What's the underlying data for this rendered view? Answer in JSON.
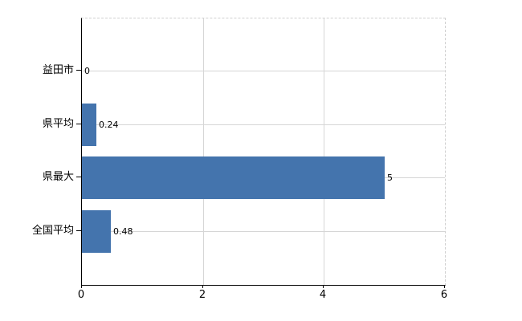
{
  "chart_data": {
    "type": "bar",
    "orientation": "horizontal",
    "title": "",
    "categories": [
      "益田市",
      "県平均",
      "県最大",
      "全国平均"
    ],
    "values": [
      0,
      0.24,
      5,
      0.48
    ],
    "value_labels": [
      "0",
      "0.24",
      "5",
      "0.48"
    ],
    "xlabel": "",
    "ylabel": "",
    "xlim": [
      0,
      6
    ],
    "x_ticks": [
      0,
      2,
      4,
      6
    ],
    "x_tick_labels": [
      "0",
      "2",
      "4",
      "6"
    ],
    "grid": "on",
    "legend": "none",
    "colors": {
      "bar_fill": "#4474ad",
      "grid_line": "#d6d6d6",
      "axis_line": "#000000",
      "plot_border": "#cfcfcf",
      "text": "#000000",
      "background": "#ffffff"
    }
  }
}
